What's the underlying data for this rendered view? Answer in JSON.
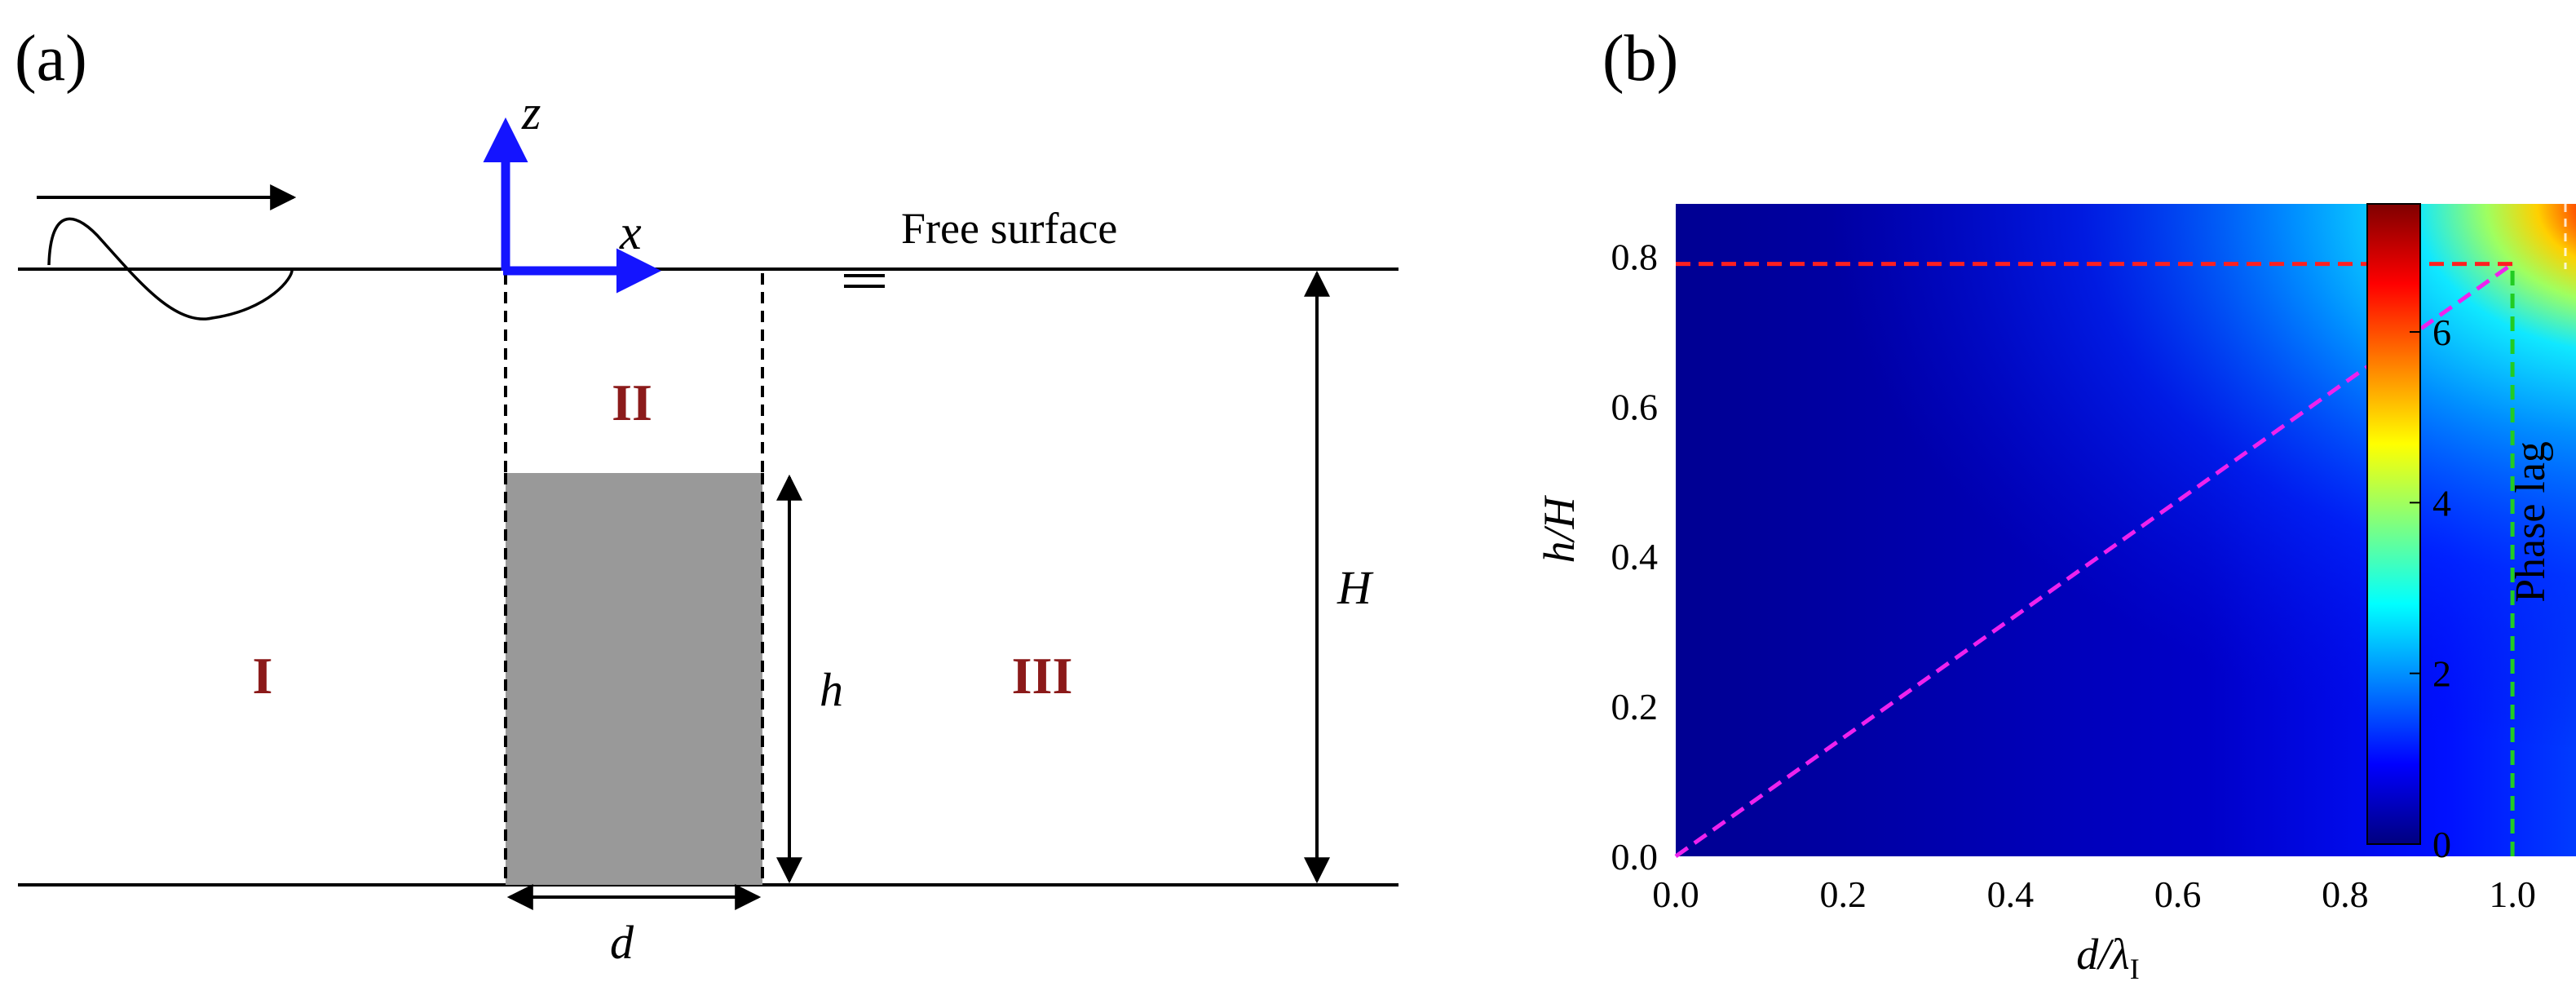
{
  "panel_a": {
    "label": "(a)",
    "axis_z": "z",
    "axis_x": "x",
    "free_surface": "Free surface",
    "region_1": "I",
    "region_2": "II",
    "region_3": "III",
    "dim_h": "h",
    "dim_H": "H",
    "dim_d": "d",
    "colors": {
      "axes": "#1414ff",
      "block": "#999999",
      "roman": "#8b1a1a"
    }
  },
  "panel_b": {
    "label": "(b)",
    "colorbar_label": "Phase lag",
    "colorbar_ticks": [
      "0",
      "2",
      "4",
      "6"
    ],
    "colormap": "jet",
    "chart_data": {
      "type": "heatmap",
      "title": "",
      "xlabel_main": "d/λ",
      "xlabel_sub": "I",
      "ylabel": "h/H",
      "x_ticks": [
        "0.0",
        "0.2",
        "0.4",
        "0.6",
        "0.8",
        "1.0"
      ],
      "y_ticks": [
        "0.0",
        "0.2",
        "0.4",
        "0.6",
        "0.8"
      ],
      "xlim": [
        0,
        1.15
      ],
      "ylim": [
        0,
        0.87
      ],
      "zlim": [
        0,
        7.5
      ],
      "grid": false,
      "z_description": "phase lag grows with d/λI and h/H, maximum near upper-right corner",
      "z_samples": [
        {
          "x": 0.0,
          "y": 0.0,
          "z": 0.0
        },
        {
          "x": 0.5,
          "y": 0.4,
          "z": 0.6
        },
        {
          "x": 0.8,
          "y": 0.6,
          "z": 1.2
        },
        {
          "x": 1.0,
          "y": 0.8,
          "z": 2.8
        },
        {
          "x": 1.1,
          "y": 0.85,
          "z": 7.2
        }
      ],
      "guide_lines": [
        {
          "name": "",
          "color": "#ff2020",
          "points": [
            [
              0,
              0.79
            ],
            [
              1.0,
              0.79
            ]
          ]
        },
        {
          "name": "",
          "color": "#22cc22",
          "points": [
            [
              1.0,
              0.0
            ],
            [
              1.0,
              0.79
            ]
          ]
        },
        {
          "name": "",
          "color": "#ee22ee",
          "points": [
            [
              0,
              0.0
            ],
            [
              1.0,
              0.79
            ]
          ]
        }
      ]
    }
  }
}
